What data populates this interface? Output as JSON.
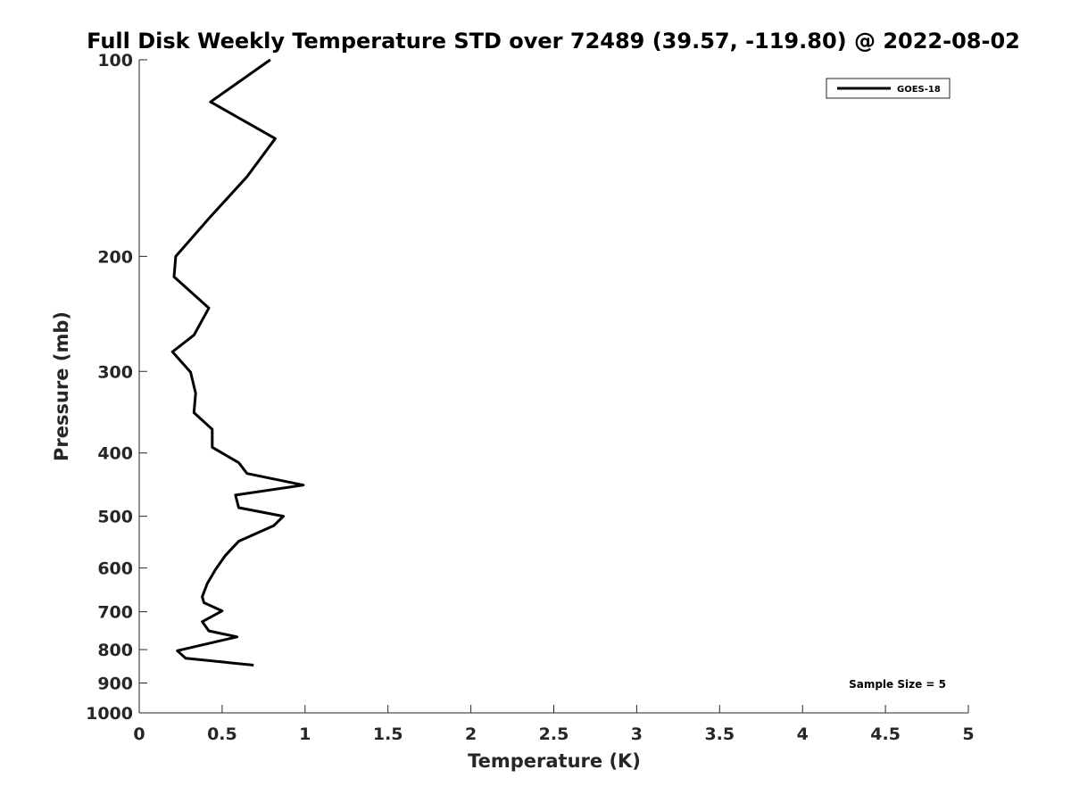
{
  "chart_data": {
    "type": "line",
    "title": "Full Disk Weekly Temperature STD over 72489 (39.57, -119.80) @ 2022-08-02",
    "xlabel": "Temperature (K)",
    "ylabel": "Pressure (mb)",
    "xlim": [
      0,
      5
    ],
    "ylim": [
      100,
      1000
    ],
    "y_scale": "log",
    "y_reversed": true,
    "grid": false,
    "x_ticks": [
      "0",
      "0.5",
      "1",
      "1.5",
      "2",
      "2.5",
      "3",
      "3.5",
      "4",
      "4.5",
      "5"
    ],
    "y_ticks": [
      "100",
      "200",
      "300",
      "400",
      "500",
      "600",
      "700",
      "800",
      "900",
      "1000"
    ],
    "legend_position": "top-right",
    "annotation": "Sample Size = 5",
    "colors": {
      "line": "#000000",
      "axis": "#262626"
    },
    "series": [
      {
        "name": "GOES-18",
        "x": [
          0.79,
          0.43,
          0.82,
          0.65,
          0.42,
          0.22,
          0.21,
          0.42,
          0.33,
          0.2,
          0.31,
          0.34,
          0.33,
          0.44,
          0.44,
          0.6,
          0.65,
          0.99,
          0.58,
          0.6,
          0.87,
          0.81,
          0.6,
          0.52,
          0.46,
          0.41,
          0.38,
          0.39,
          0.5,
          0.38,
          0.42,
          0.59,
          0.23,
          0.28,
          0.69
        ],
        "y": [
          100,
          116,
          132,
          151,
          175,
          200,
          215,
          240,
          264,
          280,
          301,
          324,
          347,
          368,
          392,
          414,
          430,
          448,
          464,
          485,
          500,
          517,
          546,
          574,
          603,
          634,
          664,
          678,
          698,
          725,
          749,
          765,
          803,
          825,
          845
        ]
      }
    ]
  }
}
